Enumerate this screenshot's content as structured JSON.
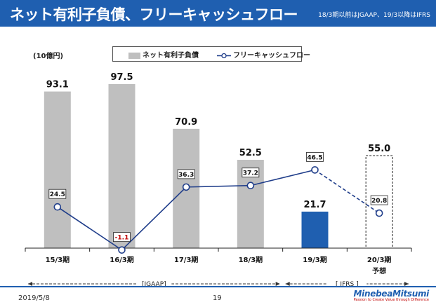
{
  "header": {
    "title": "ネット有利子負債、フリーキャッシュフロー",
    "note": "18/3期以前はJGAAP、19/3以降はIFRS"
  },
  "colors": {
    "header_bg": "#1f5fb0",
    "bar_gray": "#bfbfbf",
    "bar_blue": "#1f5fb0",
    "line": "#1f3d8a",
    "negative": "#c00000"
  },
  "chart_data": {
    "type": "bar+line",
    "unit": "(10億円)",
    "categories": [
      "15/3期",
      "16/3期",
      "17/3期",
      "18/3期",
      "19/3期",
      "20/3期"
    ],
    "category_sublabels": [
      "",
      "",
      "",
      "",
      "",
      "予想"
    ],
    "series": [
      {
        "name": "ネット有利子負債",
        "type": "bar",
        "values": [
          93.1,
          97.5,
          70.9,
          52.5,
          21.7,
          55.0
        ],
        "labels": [
          "93.1",
          "97.5",
          "70.9",
          "52.5",
          "21.7",
          "55.0"
        ],
        "styles": [
          "gray",
          "gray",
          "gray",
          "gray",
          "blue",
          "dashed-outline"
        ]
      },
      {
        "name": "フリーキャッシュフロー",
        "type": "line",
        "values": [
          24.5,
          -1.1,
          36.3,
          37.2,
          46.5,
          20.8
        ],
        "labels": [
          "24.5",
          "-1.1",
          "36.3",
          "37.2",
          "46.5",
          "20.8"
        ],
        "dashed_from_index": 4
      }
    ],
    "ylim": [
      0,
      110
    ],
    "periods": [
      {
        "label": "[JGAAP]",
        "from": 0,
        "to": 3
      },
      {
        "label": "[ IFRS ]",
        "from": 4,
        "to": 5
      }
    ]
  },
  "footer": {
    "date": "2019/5/8",
    "page": "19",
    "logo_name": "MinebeaMitsumi",
    "logo_tagline": "Passion to Create Value through Difference"
  }
}
